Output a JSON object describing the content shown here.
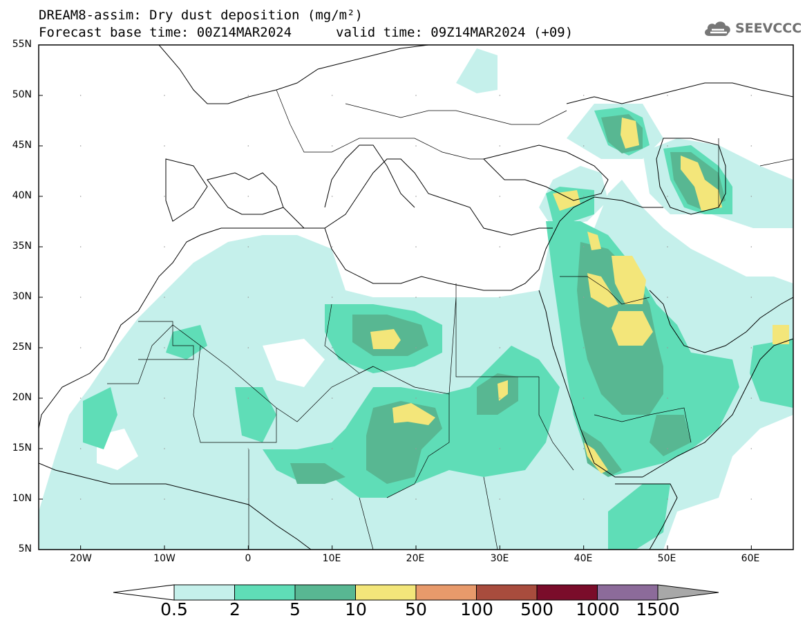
{
  "title": {
    "line1": "DREAM8-assim: Dry dust deposition (mg/m²)",
    "line2": "Forecast base time: 00Z14MAR2024",
    "valid": "valid time: 09Z14MAR2024 (+09)"
  },
  "logo": {
    "text": "SEEVCCC",
    "icon": "cloud-icon"
  },
  "map": {
    "lat_labels": [
      "55N",
      "50N",
      "45N",
      "40N",
      "35N",
      "30N",
      "25N",
      "20N",
      "15N",
      "10N",
      "5N"
    ],
    "lon_labels": [
      "20W",
      "10W",
      "0",
      "10E",
      "20E",
      "30E",
      "40E",
      "50E",
      "60E"
    ],
    "lon_range": [
      -25,
      65
    ],
    "lat_range": [
      5,
      55
    ]
  },
  "colorbar": {
    "labels": [
      "0.5",
      "2",
      "5",
      "10",
      "50",
      "100",
      "500",
      "1000",
      "1500"
    ],
    "colors": [
      "#c5f0eb",
      "#5fddb7",
      "#58b792",
      "#f3e67a",
      "#e89a6b",
      "#a84c3d",
      "#7a0c2a",
      "#8c6b9a",
      "#a8a8a8"
    ]
  }
}
